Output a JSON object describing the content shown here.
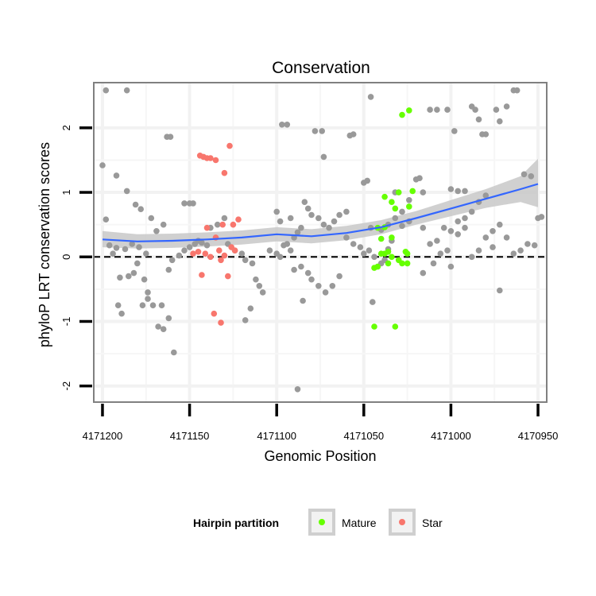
{
  "chart_data": {
    "type": "scatter",
    "title": "Conservation",
    "xlabel": "Genomic Position",
    "ylabel": "phyloP LRT conservation scores",
    "x_reversed": true,
    "xlim": [
      4171205,
      4170945
    ],
    "ylim": [
      -2.25,
      2.7
    ],
    "x_ticks": [
      4171200,
      4171150,
      4171100,
      4171050,
      4171000,
      4170950
    ],
    "x_tick_labels": [
      "4171200",
      "4171150",
      "4171100",
      "4171050",
      "4171000",
      "4170950"
    ],
    "y_ticks": [
      -2,
      -1,
      0,
      1,
      2
    ],
    "y_tick_labels": [
      "-2",
      "-1",
      "0",
      "1",
      "2"
    ],
    "reference_line": {
      "y": 0,
      "style": "dashed"
    },
    "colors": {
      "background": "#ebebeb",
      "panel_border": "#808080",
      "other": "#999999",
      "mature": "#66ff00",
      "star": "#f8766d",
      "smooth_line": "#3366ff",
      "ribbon": "#c8c8c8"
    },
    "legend": {
      "title": "Hairpin partition",
      "position": "bottom",
      "items": [
        {
          "label": "Mature",
          "color": "#66ff00"
        },
        {
          "label": "Star",
          "color": "#f8766d"
        }
      ]
    },
    "smooth": {
      "x": [
        4171200,
        4171180,
        4171160,
        4171140,
        4171120,
        4171100,
        4171080,
        4171060,
        4171040,
        4171020,
        4171000,
        4170980,
        4170960,
        4170950
      ],
      "y": [
        0.27,
        0.24,
        0.25,
        0.27,
        0.3,
        0.35,
        0.32,
        0.37,
        0.46,
        0.6,
        0.75,
        0.9,
        1.05,
        1.13
      ],
      "lower": [
        0.15,
        0.13,
        0.14,
        0.16,
        0.19,
        0.24,
        0.21,
        0.26,
        0.35,
        0.5,
        0.63,
        0.76,
        0.85,
        0.77
      ],
      "upper": [
        0.4,
        0.35,
        0.36,
        0.38,
        0.41,
        0.46,
        0.43,
        0.48,
        0.57,
        0.71,
        0.88,
        1.05,
        1.25,
        1.52
      ]
    },
    "series": [
      {
        "name": "Other",
        "color": "#999999",
        "points": [
          [
            4171198,
            2.58
          ],
          [
            4171186,
            2.58
          ],
          [
            4171200,
            1.42
          ],
          [
            4171192,
            1.26
          ],
          [
            4171186,
            1.02
          ],
          [
            4171181,
            0.81
          ],
          [
            4171178,
            0.74
          ],
          [
            4171198,
            0.58
          ],
          [
            4171196,
            0.18
          ],
          [
            4171192,
            0.14
          ],
          [
            4171194,
            0.05
          ],
          [
            4171190,
            -0.32
          ],
          [
            4171185,
            -0.3
          ],
          [
            4171182,
            -0.25
          ],
          [
            4171180,
            -0.1
          ],
          [
            4171176,
            -0.35
          ],
          [
            4171174,
            -0.55
          ],
          [
            4171171,
            -0.75
          ],
          [
            4171168,
            -1.08
          ],
          [
            4171165,
            -1.12
          ],
          [
            4171162,
            -0.2
          ],
          [
            4171160,
            -0.05
          ],
          [
            4171156,
            0.02
          ],
          [
            4171153,
            0.1
          ],
          [
            4171150,
            0.15
          ],
          [
            4171147,
            0.2
          ],
          [
            4171145,
            0.25
          ],
          [
            4171143,
            0.22
          ],
          [
            4171140,
            0.18
          ],
          [
            4171187,
            0.12
          ],
          [
            4171183,
            0.2
          ],
          [
            4171179,
            0.15
          ],
          [
            4171175,
            0.05
          ],
          [
            4171172,
            0.6
          ],
          [
            4171169,
            0.4
          ],
          [
            4171165,
            0.5
          ],
          [
            4171191,
            -0.75
          ],
          [
            4171189,
            -0.88
          ],
          [
            4171177,
            -0.75
          ],
          [
            4171174,
            -0.65
          ],
          [
            4171166,
            -0.75
          ],
          [
            4171162,
            -0.95
          ],
          [
            4171159,
            -1.48
          ],
          [
            4171163,
            1.86
          ],
          [
            4171161,
            1.86
          ],
          [
            4171153,
            0.83
          ],
          [
            4171150,
            0.83
          ],
          [
            4171148,
            0.83
          ],
          [
            4171138,
            0.45
          ],
          [
            4171134,
            0.5
          ],
          [
            4171130,
            0.6
          ],
          [
            4171128,
            0.2
          ],
          [
            4171124,
            0.1
          ],
          [
            4171120,
            0.05
          ],
          [
            4171118,
            -0.05
          ],
          [
            4171114,
            -0.1
          ],
          [
            4171112,
            -0.35
          ],
          [
            4171110,
            -0.45
          ],
          [
            4171108,
            -0.55
          ],
          [
            4171115,
            -0.8
          ],
          [
            4171118,
            -0.98
          ],
          [
            4171104,
            0.1
          ],
          [
            4171100,
            0.05
          ],
          [
            4171098,
            0.0
          ],
          [
            4171096,
            0.18
          ],
          [
            4171094,
            0.2
          ],
          [
            4171092,
            0.1
          ],
          [
            4171090,
            0.3
          ],
          [
            4171088,
            0.38
          ],
          [
            4171086,
            0.45
          ],
          [
            4171098,
            0.55
          ],
          [
            4171092,
            0.6
          ],
          [
            4171100,
            0.7
          ],
          [
            4171084,
            0.85
          ],
          [
            4171082,
            0.75
          ],
          [
            4171080,
            0.65
          ],
          [
            4171076,
            0.6
          ],
          [
            4171073,
            0.5
          ],
          [
            4171070,
            0.45
          ],
          [
            4171067,
            0.55
          ],
          [
            4171064,
            0.65
          ],
          [
            4171060,
            0.7
          ],
          [
            4171078,
            1.95
          ],
          [
            4171074,
            1.95
          ],
          [
            4171097,
            2.05
          ],
          [
            4171094,
            2.05
          ],
          [
            4171073,
            1.55
          ],
          [
            4171058,
            1.88
          ],
          [
            4171056,
            1.9
          ],
          [
            4171090,
            -0.2
          ],
          [
            4171086,
            -0.15
          ],
          [
            4171082,
            -0.25
          ],
          [
            4171080,
            -0.35
          ],
          [
            4171076,
            -0.45
          ],
          [
            4171072,
            -0.55
          ],
          [
            4171068,
            -0.45
          ],
          [
            4171064,
            -0.3
          ],
          [
            4171085,
            -0.68
          ],
          [
            4171088,
            -2.05
          ],
          [
            4171060,
            0.3
          ],
          [
            4171056,
            0.2
          ],
          [
            4171052,
            0.15
          ],
          [
            4171050,
            0.05
          ],
          [
            4171047,
            0.1
          ],
          [
            4171044,
            0.0
          ],
          [
            4171040,
            -0.1
          ],
          [
            4171038,
            -0.05
          ],
          [
            4171042,
            -0.15
          ],
          [
            4171046,
            0.45
          ],
          [
            4171050,
            1.15
          ],
          [
            4171048,
            1.18
          ],
          [
            4171046,
            2.48
          ],
          [
            4171045,
            -0.7
          ],
          [
            4171040,
            0.42
          ],
          [
            4171036,
            0.5
          ],
          [
            4171032,
            0.6
          ],
          [
            4171028,
            0.7
          ],
          [
            4171024,
            0.55
          ],
          [
            4171020,
            1.2
          ],
          [
            4171018,
            1.22
          ],
          [
            4171016,
            0.45
          ],
          [
            4171012,
            0.2
          ],
          [
            4171008,
            0.25
          ],
          [
            4171004,
            0.45
          ],
          [
            4171000,
            0.4
          ],
          [
            4170996,
            0.55
          ],
          [
            4170992,
            0.6
          ],
          [
            4170988,
            0.7
          ],
          [
            4170984,
            0.85
          ],
          [
            4170980,
            0.95
          ],
          [
            4171012,
            2.28
          ],
          [
            4171008,
            2.28
          ],
          [
            4171002,
            2.28
          ],
          [
            4170998,
            1.95
          ],
          [
            4171016,
            -0.25
          ],
          [
            4171010,
            -0.1
          ],
          [
            4171006,
            0.05
          ],
          [
            4171002,
            0.1
          ],
          [
            4171000,
            -0.15
          ],
          [
            4170996,
            0.35
          ],
          [
            4170992,
            0.45
          ],
          [
            4170988,
            0.0
          ],
          [
            4170984,
            0.1
          ],
          [
            4170980,
            0.3
          ],
          [
            4170976,
            0.4
          ],
          [
            4170972,
            0.5
          ],
          [
            4170968,
            0.3
          ],
          [
            4170964,
            0.05
          ],
          [
            4170960,
            0.1
          ],
          [
            4170956,
            0.2
          ],
          [
            4170952,
            0.18
          ],
          [
            4170988,
            2.33
          ],
          [
            4170986,
            2.28
          ],
          [
            4170984,
            2.13
          ],
          [
            4170982,
            1.9
          ],
          [
            4170980,
            1.9
          ],
          [
            4170974,
            2.28
          ],
          [
            4170972,
            2.1
          ],
          [
            4170968,
            2.33
          ],
          [
            4170964,
            2.58
          ],
          [
            4170962,
            2.58
          ],
          [
            4170958,
            1.28
          ],
          [
            4170954,
            1.25
          ],
          [
            4170950,
            0.6
          ],
          [
            4170948,
            0.62
          ],
          [
            4170972,
            -0.52
          ],
          [
            4170976,
            0.15
          ],
          [
            4170992,
            1.02
          ],
          [
            4170996,
            1.02
          ],
          [
            4171000,
            1.05
          ],
          [
            4171016,
            1.0
          ],
          [
            4171024,
            0.88
          ],
          [
            4171032,
            1.0
          ],
          [
            4171028,
            0.48
          ],
          [
            4171034,
            0.25
          ],
          [
            4171036,
            0.12
          ]
        ]
      },
      {
        "name": "Mature",
        "color": "#66ff00",
        "points": [
          [
            4171024,
            2.27
          ],
          [
            4171028,
            2.2
          ],
          [
            4171038,
            0.93
          ],
          [
            4171034,
            0.85
          ],
          [
            4171030,
            1.0
          ],
          [
            4171032,
            0.75
          ],
          [
            4171022,
            1.02
          ],
          [
            4171024,
            0.78
          ],
          [
            4171038,
            0.46
          ],
          [
            4171042,
            0.45
          ],
          [
            4171034,
            0.3
          ],
          [
            4171040,
            0.28
          ],
          [
            4171036,
            0.08
          ],
          [
            4171040,
            0.05
          ],
          [
            4171038,
            0.05
          ],
          [
            4171034,
            0.0
          ],
          [
            4171025,
            0.05
          ],
          [
            4171026,
            0.08
          ],
          [
            4171030,
            -0.05
          ],
          [
            4171036,
            -0.1
          ],
          [
            4171042,
            -0.15
          ],
          [
            4171044,
            -0.17
          ],
          [
            4171028,
            -0.1
          ],
          [
            4171025,
            -0.1
          ],
          [
            4171044,
            -1.08
          ],
          [
            4171032,
            -1.08
          ]
        ]
      },
      {
        "name": "Star",
        "color": "#f8766d",
        "points": [
          [
            4171144,
            1.57
          ],
          [
            4171142,
            1.55
          ],
          [
            4171140,
            1.53
          ],
          [
            4171138,
            1.53
          ],
          [
            4171135,
            1.5
          ],
          [
            4171130,
            1.3
          ],
          [
            4171127,
            1.72
          ],
          [
            4171122,
            0.58
          ],
          [
            4171125,
            0.5
          ],
          [
            4171131,
            0.5
          ],
          [
            4171140,
            0.45
          ],
          [
            4171148,
            0.05
          ],
          [
            4171145,
            0.08
          ],
          [
            4171141,
            0.05
          ],
          [
            4171138,
            0.0
          ],
          [
            4171135,
            0.3
          ],
          [
            4171133,
            0.1
          ],
          [
            4171130,
            0.02
          ],
          [
            4171126,
            0.15
          ],
          [
            4171124,
            0.1
          ],
          [
            4171132,
            -0.05
          ],
          [
            4171128,
            -0.3
          ],
          [
            4171143,
            -0.28
          ],
          [
            4171136,
            -0.88
          ],
          [
            4171132,
            -1.02
          ]
        ]
      }
    ]
  }
}
